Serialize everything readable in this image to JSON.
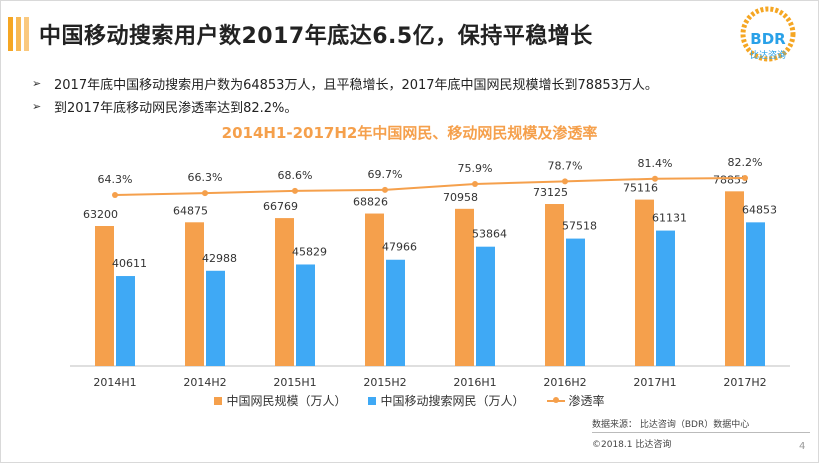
{
  "header": {
    "title": "中国移动搜索用户数2017年底达6.5亿，保持平稳增长",
    "logo_text": "BDR",
    "logo_sub": "比达咨询"
  },
  "bullets": [
    "2017年底中国移动搜索用户数为64853万人，且平稳增长，2017年底中国网民规模增长到78853万人。",
    "到2017年底移动网民渗透率达到82.2%。"
  ],
  "chart_data": {
    "type": "bar",
    "title": "2014H1-2017H2年中国网民、移动网民规模及渗透率",
    "categories": [
      "2014H1",
      "2014H2",
      "2015H1",
      "2015H2",
      "2016H1",
      "2016H2",
      "2017H1",
      "2017H2"
    ],
    "series": [
      {
        "name": "中国网民规模（万人）",
        "type": "bar",
        "color": "#f5a04c",
        "values": [
          63200,
          64875,
          66769,
          68826,
          70958,
          73125,
          75116,
          78853
        ]
      },
      {
        "name": "中国移动搜索网民（万人）",
        "type": "bar",
        "color": "#3fa9f5",
        "values": [
          40611,
          42988,
          45829,
          47966,
          53864,
          57518,
          61131,
          64853
        ]
      },
      {
        "name": "渗透率",
        "type": "line",
        "color": "#f5a04c",
        "values": [
          64.3,
          66.3,
          68.6,
          69.7,
          75.9,
          78.7,
          81.4,
          82.2
        ],
        "labels": [
          "64.3%",
          "66.3%",
          "68.6%",
          "69.7%",
          "75.9%",
          "78.7%",
          "81.4%",
          "82.2%"
        ]
      }
    ],
    "legend_position": "bottom",
    "grid": false
  },
  "footer": {
    "source": "数据来源： 比达咨询（BDR）数据中心",
    "copyright": "©2018.1   比达咨询",
    "page_number": "4"
  }
}
